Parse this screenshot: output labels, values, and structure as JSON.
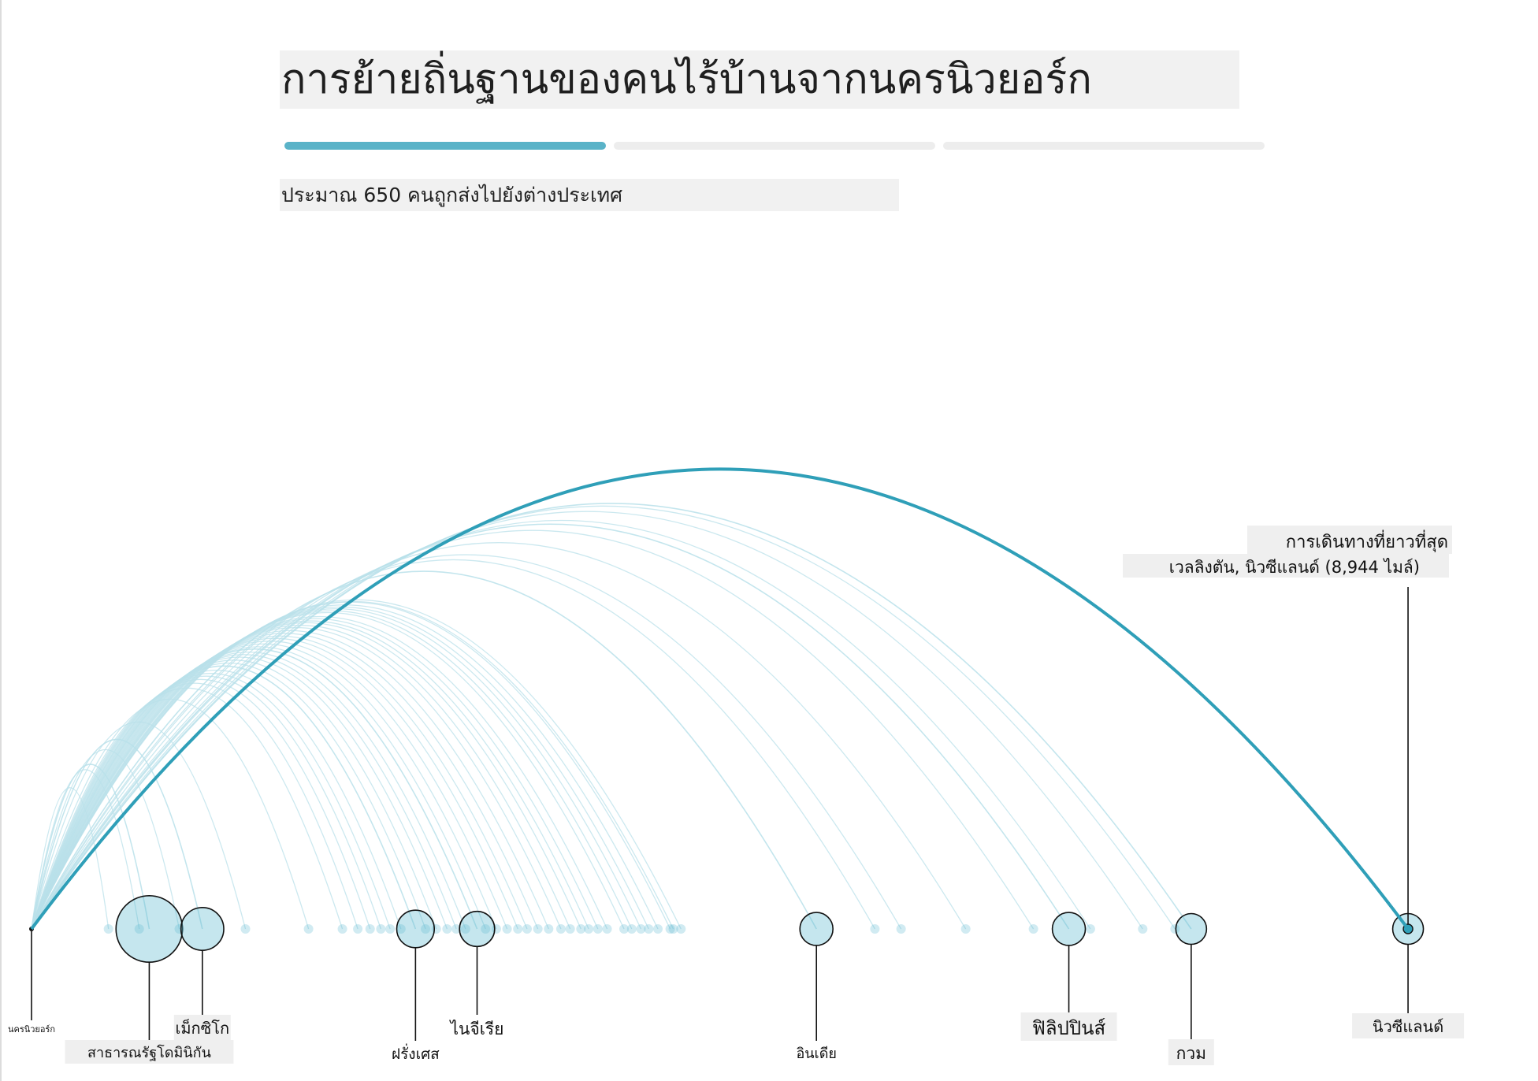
{
  "title": "การย้ายถิ่นฐานของคนไร้บ้านจากนครนิวยอร์ก",
  "subtitle": "ประมาณ 650 คนถูกส่งไปยังต่างประเทศ",
  "steps": [
    {
      "active": true
    },
    {
      "active": false
    },
    {
      "active": false
    }
  ],
  "colors": {
    "highlight_arc": "#2f9fb8",
    "faint_arc": "#b9e0ea",
    "bubble_fill": "#5ab8cf",
    "leader_line": "#111111"
  },
  "annotation": {
    "line1": "การเดินทางที่ยาวที่สุด",
    "line2": "เวลลิงตัน, นิวซีแลนด์ (8,944 ไมล์)"
  },
  "chart_data": {
    "type": "arc",
    "origin": "นครนิวยอร์ก",
    "x_unit": "miles from New York City",
    "xlim": [
      0,
      9000
    ],
    "longest_trip": {
      "label": "เวลลิงตัน, นิวซีแลนด์",
      "miles": 8944
    },
    "labeled_destinations": [
      {
        "label": "นครนิวยอร์ก",
        "miles": 0,
        "size": 0
      },
      {
        "label": "สาธารณรัฐโดมินิกัน",
        "miles": 765,
        "size": 10
      },
      {
        "label": "เม็กซิโก",
        "miles": 1110,
        "size": 3
      },
      {
        "label": "ฝรั่งเศส",
        "miles": 2495,
        "size": 2
      },
      {
        "label": "ไนจีเรีย",
        "miles": 2895,
        "size": 1.6
      },
      {
        "label": "อินเดีย",
        "miles": 5100,
        "size": 1.3
      },
      {
        "label": "ฟิลิปปินส์",
        "miles": 6740,
        "size": 1.3
      },
      {
        "label": "กวม",
        "miles": 7535,
        "size": 1
      },
      {
        "label": "นิวซีแลนด์",
        "miles": 8944,
        "size": 1
      }
    ],
    "other_destinations_miles": [
      500,
      700,
      960,
      1390,
      1800,
      2020,
      2120,
      2200,
      2270,
      2330,
      2400,
      2560,
      2630,
      2700,
      2760,
      2820,
      2950,
      3020,
      3090,
      3160,
      3220,
      3290,
      3360,
      3440,
      3500,
      3570,
      3620,
      3680,
      3740,
      3850,
      3900,
      3960,
      4010,
      4070,
      4150,
      4170,
      4220,
      5480,
      5650,
      6070,
      6510,
      6880,
      7220,
      7430
    ]
  }
}
